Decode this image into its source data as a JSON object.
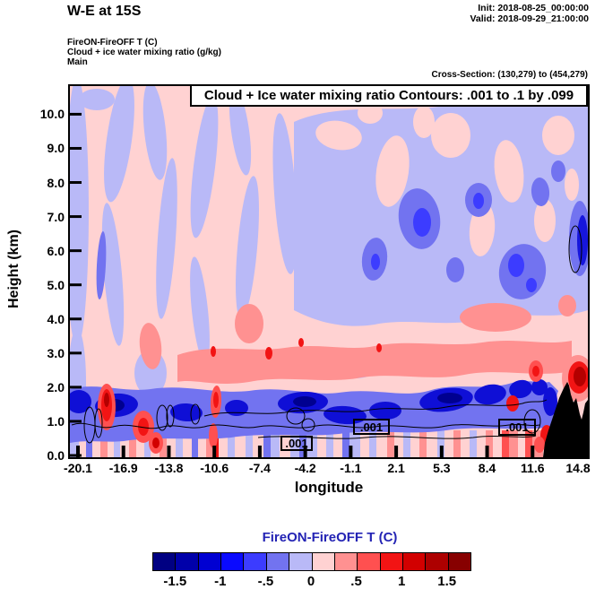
{
  "header": {
    "title": "W-E at 15S",
    "init": "Init: 2018-08-25_00:00:00",
    "valid": "Valid: 2018-09-29_21:00:00",
    "field_line1": "FireON-FireOFF T   (C)",
    "field_line2": "Cloud + ice water mixing ratio   (g/kg)",
    "field_line3": "Main",
    "cross_section": "Cross-Section: (130,279) to (454,279)"
  },
  "plot": {
    "frame_title": "Cloud + Ice water mixing ratio Contours: .001 to .1 by .099",
    "xlabel": "longitude",
    "ylabel": "Height (km)",
    "contour_labels": [
      ".001",
      ".001",
      ".001"
    ]
  },
  "colorbar": {
    "title": "FireON-FireOFF T  (C)",
    "title_color": "#2323b4",
    "tick_labels": [
      "-1.5",
      "-1",
      "-.5",
      "0",
      ".5",
      "1",
      "1.5"
    ],
    "colors": [
      "#000082",
      "#0000aa",
      "#0000d2",
      "#0a0aff",
      "#3c3cff",
      "#7273f0",
      "#b9b9f7",
      "#ffd2d2",
      "#ff9191",
      "#ff5050",
      "#f21414",
      "#d20000",
      "#ad0000",
      "#870000"
    ]
  },
  "chart_data": {
    "type": "heatmap",
    "title": "Cloud + Ice water mixing ratio Contours: .001 to .1 by .099",
    "xlabel": "longitude",
    "ylabel": "Height (km)",
    "x_tick_labels": [
      "-20.1",
      "-16.9",
      "-13.8",
      "-10.6",
      "-7.4",
      "-4.2",
      "-1.1",
      "2.1",
      "5.3",
      "8.4",
      "11.6",
      "14.8"
    ],
    "x_ticks": [
      -20.1,
      -16.9,
      -13.8,
      -10.6,
      -7.4,
      -4.2,
      -1.1,
      2.1,
      5.3,
      8.4,
      11.6,
      14.8
    ],
    "y_tick_labels": [
      "0.0",
      "1.0",
      "2.0",
      "3.0",
      "4.0",
      "5.0",
      "6.0",
      "7.0",
      "8.0",
      "9.0",
      "10.0"
    ],
    "y_ticks": [
      0,
      1,
      2,
      3,
      4,
      5,
      6,
      7,
      8,
      9,
      10
    ],
    "xlim": [
      -20.1,
      14.8
    ],
    "ylim": [
      0,
      10.8
    ],
    "grid": false,
    "legend_position": "bottom colorbar",
    "fill_variable": "FireON-FireOFF T (C)",
    "fill_levels_c": [
      -1.75,
      -1.5,
      -1.25,
      -1.0,
      -0.75,
      -0.5,
      -0.25,
      0,
      0.25,
      0.5,
      0.75,
      1.0,
      1.25,
      1.5,
      1.75
    ],
    "contour_variable": "Cloud + Ice water mixing ratio (g/kg)",
    "contour_levels_gkg": [
      0.001,
      0.1
    ],
    "features": [
      "alternating weak warm/cold vertical streaks (about +/-0.25 C) fill most of the troposphere",
      "continuous band of strong cooling (-1 to -1.75 C) at 0.5-2 km height across the whole section",
      "intense low-level warming (+1 to +1.75 C) near longitude -16.9 below 2 km and near -13.5",
      "cold pools aloft (-0.5 to -1 C) between longitudes 2 and 14.8 at 5-7.5 km",
      "warm layer (+0.25 to +0.75 C) around 2-4 km east of longitude -8",
      "dark warm core (+1.5 C) near longitude 14 at about 2 km beside the terrain",
      "black terrain silhouette from longitude ~12 to 14.8 reaching ~2.2 km",
      "0.001 g/kg cloud+ice contour lines below ~1.5 km with three boxed .001 labels"
    ]
  }
}
